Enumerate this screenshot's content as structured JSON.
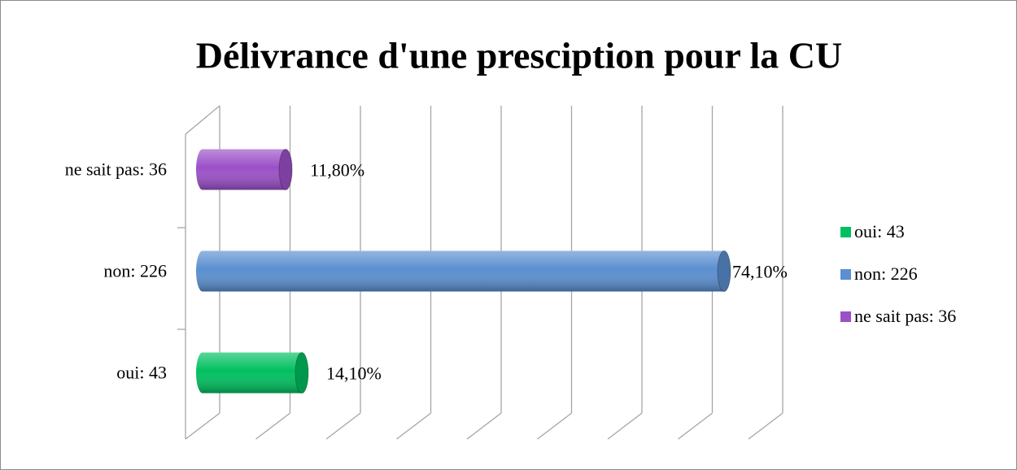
{
  "chart_data": {
    "type": "bar3d",
    "title": "Délivrance d'une presciption pour la CU",
    "categories": [
      "oui: 43",
      "non: 226",
      "ne sait pas: 36"
    ],
    "values": [
      14.1,
      74.1,
      11.8
    ],
    "value_labels": [
      "14,10%",
      "74,10%",
      "11,80%"
    ],
    "colors": [
      "#00c060",
      "#5b8fd0",
      "#9b50c8"
    ],
    "xlim": [
      0,
      80
    ],
    "xticks": [
      0,
      10,
      20,
      30,
      40,
      50,
      60,
      70,
      80
    ],
    "grid": true,
    "legend": "right"
  }
}
